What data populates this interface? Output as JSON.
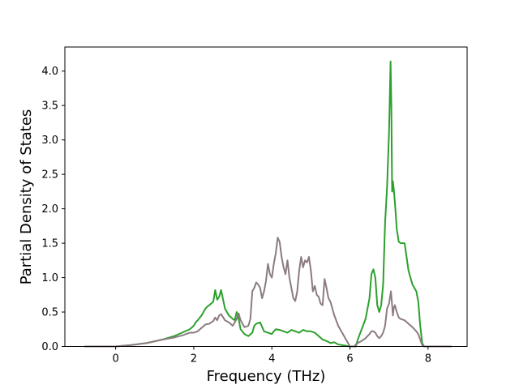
{
  "chart_data": {
    "type": "line",
    "title": "",
    "xlabel": "Frequency (THz)",
    "ylabel": "Partial Density of States",
    "xlim": [
      -1.3,
      9.0
    ],
    "ylim": [
      0.0,
      4.35
    ],
    "x_ticks": [
      0,
      2,
      4,
      6,
      8
    ],
    "x_tick_labels": [
      "0",
      "2",
      "4",
      "6",
      "8"
    ],
    "y_ticks": [
      0.0,
      0.5,
      1.0,
      1.5,
      2.0,
      2.5,
      3.0,
      3.5,
      4.0
    ],
    "y_tick_labels": [
      "0.0",
      "0.5",
      "1.0",
      "1.5",
      "2.0",
      "2.5",
      "3.0",
      "3.5",
      "4.0"
    ],
    "grid": false,
    "legend": "none",
    "series": [
      {
        "color": "#2ca02c",
        "x": [
          -0.8,
          0.0,
          0.4,
          0.8,
          1.2,
          1.5,
          1.7,
          1.9,
          2.0,
          2.05,
          2.1,
          2.2,
          2.3,
          2.35,
          2.4,
          2.5,
          2.55,
          2.6,
          2.65,
          2.7,
          2.8,
          2.85,
          2.9,
          3.0,
          3.05,
          3.1,
          3.15,
          3.2,
          3.3,
          3.4,
          3.5,
          3.55,
          3.6,
          3.7,
          3.8,
          3.9,
          4.0,
          4.05,
          4.1,
          4.2,
          4.3,
          4.4,
          4.5,
          4.6,
          4.7,
          4.8,
          4.9,
          5.0,
          5.1,
          5.2,
          5.3,
          5.4,
          5.5,
          5.6,
          5.7,
          5.8,
          5.9,
          6.0,
          6.1,
          6.15,
          6.2,
          6.3,
          6.4,
          6.5,
          6.55,
          6.6,
          6.65,
          6.7,
          6.75,
          6.8,
          6.85,
          6.9,
          6.95,
          7.0,
          7.02,
          7.04,
          7.06,
          7.08,
          7.1,
          7.12,
          7.15,
          7.2,
          7.25,
          7.3,
          7.4,
          7.45,
          7.5,
          7.6,
          7.7,
          7.75,
          7.8,
          7.85,
          7.9,
          8.0,
          8.6
        ],
        "y": [
          0.0,
          0.0,
          0.02,
          0.05,
          0.1,
          0.15,
          0.2,
          0.25,
          0.3,
          0.35,
          0.38,
          0.45,
          0.55,
          0.58,
          0.6,
          0.65,
          0.82,
          0.68,
          0.72,
          0.82,
          0.55,
          0.5,
          0.45,
          0.4,
          0.38,
          0.5,
          0.4,
          0.25,
          0.18,
          0.15,
          0.2,
          0.3,
          0.33,
          0.35,
          0.22,
          0.2,
          0.18,
          0.22,
          0.25,
          0.24,
          0.22,
          0.2,
          0.24,
          0.22,
          0.2,
          0.24,
          0.22,
          0.22,
          0.2,
          0.15,
          0.1,
          0.08,
          0.05,
          0.06,
          0.03,
          0.02,
          0.01,
          0.0,
          0.0,
          0.0,
          0.1,
          0.25,
          0.4,
          0.7,
          1.05,
          1.12,
          1.0,
          0.6,
          0.5,
          0.6,
          0.9,
          1.8,
          2.3,
          3.1,
          3.6,
          4.14,
          3.5,
          2.25,
          2.4,
          2.3,
          2.1,
          1.7,
          1.52,
          1.5,
          1.5,
          1.3,
          1.1,
          0.9,
          0.8,
          0.65,
          0.3,
          0.05,
          0.0,
          0.0,
          0.0
        ]
      },
      {
        "color": "#8c7b80",
        "x": [
          -0.8,
          0.0,
          0.4,
          0.8,
          1.2,
          1.5,
          1.7,
          1.9,
          2.0,
          2.1,
          2.2,
          2.3,
          2.4,
          2.5,
          2.55,
          2.6,
          2.65,
          2.7,
          2.8,
          2.9,
          3.0,
          3.1,
          3.15,
          3.2,
          3.3,
          3.4,
          3.45,
          3.5,
          3.55,
          3.6,
          3.65,
          3.7,
          3.75,
          3.8,
          3.85,
          3.9,
          3.95,
          4.0,
          4.05,
          4.1,
          4.15,
          4.2,
          4.25,
          4.3,
          4.35,
          4.4,
          4.45,
          4.5,
          4.55,
          4.6,
          4.65,
          4.7,
          4.75,
          4.8,
          4.85,
          4.9,
          4.95,
          5.0,
          5.05,
          5.1,
          5.15,
          5.2,
          5.25,
          5.3,
          5.35,
          5.4,
          5.45,
          5.5,
          5.55,
          5.6,
          5.7,
          5.8,
          5.9,
          6.0,
          6.05,
          6.1,
          6.2,
          6.3,
          6.4,
          6.5,
          6.55,
          6.6,
          6.65,
          6.7,
          6.75,
          6.8,
          6.85,
          6.9,
          6.95,
          7.0,
          7.05,
          7.08,
          7.1,
          7.12,
          7.15,
          7.2,
          7.25,
          7.3,
          7.4,
          7.5,
          7.6,
          7.7,
          7.75,
          7.8,
          7.85,
          7.9,
          8.0,
          8.6
        ],
        "y": [
          0.0,
          0.0,
          0.02,
          0.05,
          0.1,
          0.13,
          0.16,
          0.2,
          0.2,
          0.22,
          0.27,
          0.32,
          0.33,
          0.37,
          0.42,
          0.38,
          0.45,
          0.47,
          0.38,
          0.35,
          0.3,
          0.4,
          0.48,
          0.38,
          0.28,
          0.3,
          0.4,
          0.8,
          0.85,
          0.93,
          0.9,
          0.85,
          0.7,
          0.8,
          0.95,
          1.2,
          1.05,
          1.0,
          1.2,
          1.35,
          1.58,
          1.52,
          1.3,
          1.15,
          1.05,
          1.25,
          1.0,
          0.85,
          0.7,
          0.66,
          0.8,
          1.1,
          1.3,
          1.15,
          1.25,
          1.22,
          1.3,
          1.1,
          0.8,
          0.88,
          0.75,
          0.72,
          0.62,
          0.6,
          0.98,
          0.85,
          0.7,
          0.65,
          0.55,
          0.45,
          0.3,
          0.2,
          0.1,
          0.0,
          0.0,
          0.0,
          0.05,
          0.08,
          0.12,
          0.18,
          0.22,
          0.22,
          0.2,
          0.15,
          0.12,
          0.15,
          0.2,
          0.3,
          0.55,
          0.62,
          0.8,
          0.6,
          0.45,
          0.55,
          0.6,
          0.5,
          0.42,
          0.4,
          0.38,
          0.33,
          0.28,
          0.22,
          0.18,
          0.1,
          0.02,
          0.0,
          0.0,
          0.0
        ]
      }
    ]
  }
}
